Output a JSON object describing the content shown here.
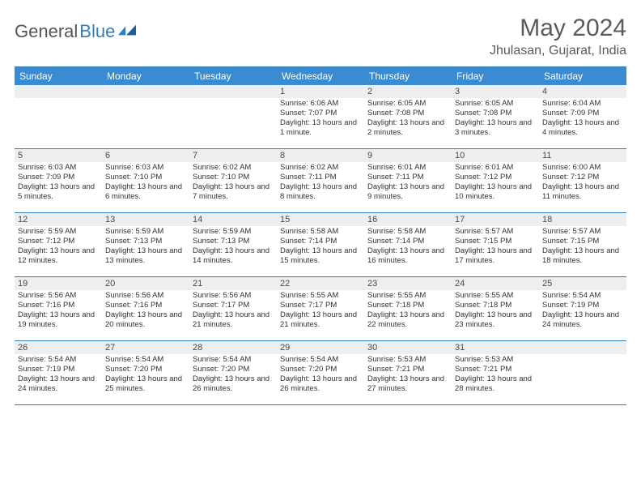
{
  "brand": {
    "part1": "General",
    "part2": "Blue"
  },
  "title": "May 2024",
  "location": "Jhulasan, Gujarat, India",
  "colors": {
    "header_bg": "#3a8bcf",
    "border": "#2f7fbf",
    "daynum_bg": "#eceef0",
    "text": "#333333",
    "title_text": "#5a5a5a"
  },
  "typography": {
    "title_fontsize": 30,
    "location_fontsize": 16,
    "weekday_fontsize": 12,
    "body_fontsize": 9.5
  },
  "weekdays": [
    "Sunday",
    "Monday",
    "Tuesday",
    "Wednesday",
    "Thursday",
    "Friday",
    "Saturday"
  ],
  "weeks": [
    [
      null,
      null,
      null,
      {
        "d": "1",
        "rise": "6:06 AM",
        "set": "7:07 PM",
        "day": "13 hours and 1 minute."
      },
      {
        "d": "2",
        "rise": "6:05 AM",
        "set": "7:08 PM",
        "day": "13 hours and 2 minutes."
      },
      {
        "d": "3",
        "rise": "6:05 AM",
        "set": "7:08 PM",
        "day": "13 hours and 3 minutes."
      },
      {
        "d": "4",
        "rise": "6:04 AM",
        "set": "7:09 PM",
        "day": "13 hours and 4 minutes."
      }
    ],
    [
      {
        "d": "5",
        "rise": "6:03 AM",
        "set": "7:09 PM",
        "day": "13 hours and 5 minutes."
      },
      {
        "d": "6",
        "rise": "6:03 AM",
        "set": "7:10 PM",
        "day": "13 hours and 6 minutes."
      },
      {
        "d": "7",
        "rise": "6:02 AM",
        "set": "7:10 PM",
        "day": "13 hours and 7 minutes."
      },
      {
        "d": "8",
        "rise": "6:02 AM",
        "set": "7:11 PM",
        "day": "13 hours and 8 minutes."
      },
      {
        "d": "9",
        "rise": "6:01 AM",
        "set": "7:11 PM",
        "day": "13 hours and 9 minutes."
      },
      {
        "d": "10",
        "rise": "6:01 AM",
        "set": "7:12 PM",
        "day": "13 hours and 10 minutes."
      },
      {
        "d": "11",
        "rise": "6:00 AM",
        "set": "7:12 PM",
        "day": "13 hours and 11 minutes."
      }
    ],
    [
      {
        "d": "12",
        "rise": "5:59 AM",
        "set": "7:12 PM",
        "day": "13 hours and 12 minutes."
      },
      {
        "d": "13",
        "rise": "5:59 AM",
        "set": "7:13 PM",
        "day": "13 hours and 13 minutes."
      },
      {
        "d": "14",
        "rise": "5:59 AM",
        "set": "7:13 PM",
        "day": "13 hours and 14 minutes."
      },
      {
        "d": "15",
        "rise": "5:58 AM",
        "set": "7:14 PM",
        "day": "13 hours and 15 minutes."
      },
      {
        "d": "16",
        "rise": "5:58 AM",
        "set": "7:14 PM",
        "day": "13 hours and 16 minutes."
      },
      {
        "d": "17",
        "rise": "5:57 AM",
        "set": "7:15 PM",
        "day": "13 hours and 17 minutes."
      },
      {
        "d": "18",
        "rise": "5:57 AM",
        "set": "7:15 PM",
        "day": "13 hours and 18 minutes."
      }
    ],
    [
      {
        "d": "19",
        "rise": "5:56 AM",
        "set": "7:16 PM",
        "day": "13 hours and 19 minutes."
      },
      {
        "d": "20",
        "rise": "5:56 AM",
        "set": "7:16 PM",
        "day": "13 hours and 20 minutes."
      },
      {
        "d": "21",
        "rise": "5:56 AM",
        "set": "7:17 PM",
        "day": "13 hours and 21 minutes."
      },
      {
        "d": "22",
        "rise": "5:55 AM",
        "set": "7:17 PM",
        "day": "13 hours and 21 minutes."
      },
      {
        "d": "23",
        "rise": "5:55 AM",
        "set": "7:18 PM",
        "day": "13 hours and 22 minutes."
      },
      {
        "d": "24",
        "rise": "5:55 AM",
        "set": "7:18 PM",
        "day": "13 hours and 23 minutes."
      },
      {
        "d": "25",
        "rise": "5:54 AM",
        "set": "7:19 PM",
        "day": "13 hours and 24 minutes."
      }
    ],
    [
      {
        "d": "26",
        "rise": "5:54 AM",
        "set": "7:19 PM",
        "day": "13 hours and 24 minutes."
      },
      {
        "d": "27",
        "rise": "5:54 AM",
        "set": "7:20 PM",
        "day": "13 hours and 25 minutes."
      },
      {
        "d": "28",
        "rise": "5:54 AM",
        "set": "7:20 PM",
        "day": "13 hours and 26 minutes."
      },
      {
        "d": "29",
        "rise": "5:54 AM",
        "set": "7:20 PM",
        "day": "13 hours and 26 minutes."
      },
      {
        "d": "30",
        "rise": "5:53 AM",
        "set": "7:21 PM",
        "day": "13 hours and 27 minutes."
      },
      {
        "d": "31",
        "rise": "5:53 AM",
        "set": "7:21 PM",
        "day": "13 hours and 28 minutes."
      },
      null
    ]
  ],
  "labels": {
    "sunrise": "Sunrise:",
    "sunset": "Sunset:",
    "daylight": "Daylight:"
  }
}
